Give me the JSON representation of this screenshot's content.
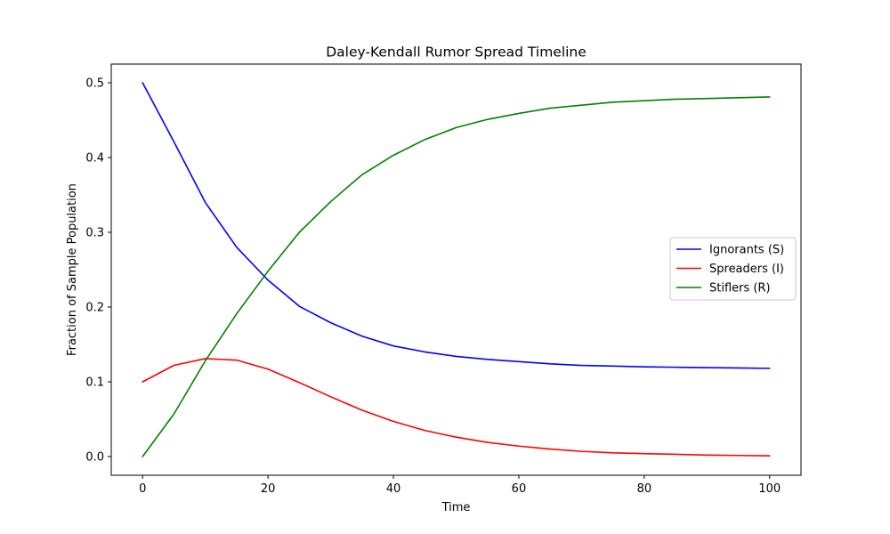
{
  "chart_data": {
    "type": "line",
    "title": "Daley-Kendall Rumor Spread Timeline",
    "xlabel": "Time",
    "ylabel": "Fraction of Sample Population",
    "xlim": [
      -5,
      105
    ],
    "ylim": [
      -0.025,
      0.525
    ],
    "xticks": [
      0,
      20,
      40,
      60,
      80,
      100
    ],
    "yticks": [
      0.0,
      0.1,
      0.2,
      0.3,
      0.4,
      0.5
    ],
    "xtick_labels": [
      "0",
      "20",
      "40",
      "60",
      "80",
      "100"
    ],
    "ytick_labels": [
      "0.0",
      "0.1",
      "0.2",
      "0.3",
      "0.4",
      "0.5"
    ],
    "grid": false,
    "legend_position": "center-right",
    "x": [
      0,
      5,
      10,
      15,
      20,
      25,
      30,
      35,
      40,
      45,
      50,
      55,
      60,
      65,
      70,
      75,
      80,
      85,
      90,
      95,
      100
    ],
    "series": [
      {
        "name": "Ignorants (S)",
        "color": "#0000ff",
        "values": [
          0.5,
          0.421,
          0.34,
          0.28,
          0.236,
          0.201,
          0.179,
          0.161,
          0.148,
          0.14,
          0.134,
          0.13,
          0.127,
          0.124,
          0.122,
          0.121,
          0.12,
          0.1195,
          0.119,
          0.1185,
          0.118
        ]
      },
      {
        "name": "Spreaders (I)",
        "color": "#ff0000",
        "values": [
          0.1,
          0.122,
          0.131,
          0.129,
          0.117,
          0.099,
          0.08,
          0.062,
          0.047,
          0.035,
          0.026,
          0.019,
          0.014,
          0.01,
          0.007,
          0.005,
          0.004,
          0.003,
          0.002,
          0.0015,
          0.001
        ]
      },
      {
        "name": "Stiflers (R)",
        "color": "#008000",
        "values": [
          0.0,
          0.057,
          0.128,
          0.191,
          0.248,
          0.3,
          0.341,
          0.377,
          0.403,
          0.424,
          0.44,
          0.451,
          0.459,
          0.466,
          0.47,
          0.474,
          0.476,
          0.478,
          0.479,
          0.48,
          0.481
        ]
      }
    ]
  }
}
